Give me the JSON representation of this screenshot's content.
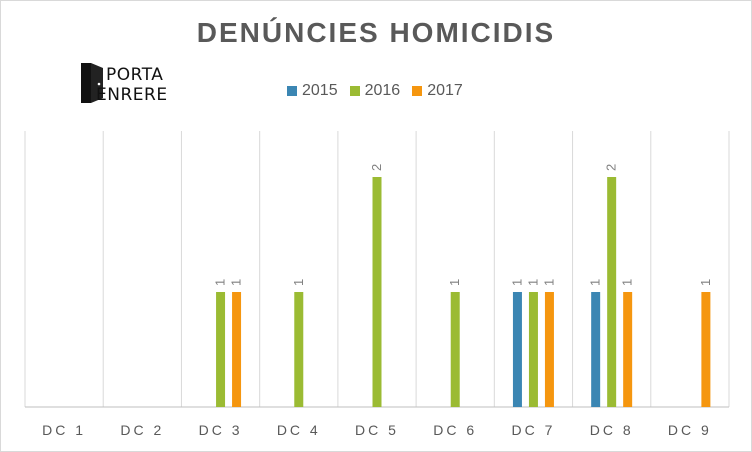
{
  "chart_data": {
    "type": "bar",
    "title": "DENÚNCIES  HOMICIDIS",
    "categories": [
      "DC 1",
      "DC 2",
      "DC 3",
      "DC 4",
      "DC 5",
      "DC 6",
      "DC 7",
      "DC 8",
      "DC 9"
    ],
    "series": [
      {
        "name": "2015",
        "color": "#3b86b3",
        "values": [
          0,
          0,
          0,
          0,
          0,
          0,
          1,
          1,
          0
        ]
      },
      {
        "name": "2016",
        "color": "#9bbb33",
        "values": [
          0,
          0,
          1,
          1,
          2,
          1,
          1,
          2,
          0
        ]
      },
      {
        "name": "2017",
        "color": "#f5960f",
        "values": [
          0,
          0,
          1,
          0,
          0,
          0,
          1,
          1,
          1
        ]
      }
    ],
    "ylim": [
      0,
      2.4
    ],
    "xlabel": "",
    "ylabel": "",
    "legend_position": "top-center",
    "grid": "vertical-category-separators",
    "data_labels": "rotated"
  },
  "logo": {
    "line1": "PORTA",
    "line2": "ENRERE"
  }
}
